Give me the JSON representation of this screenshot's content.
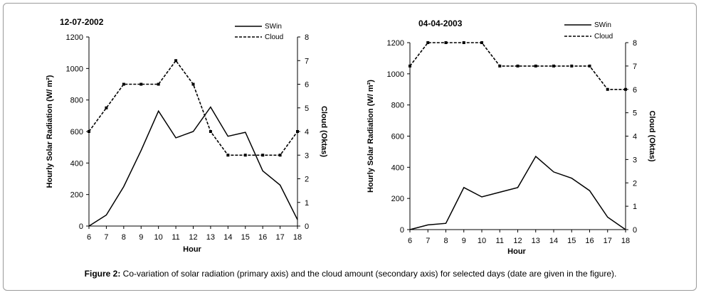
{
  "caption": {
    "label": "Figure 2:",
    "text": " Co-variation of solar radiation (primary axis) and the cloud amount (secondary axis) for selected days (date are given in the figure)."
  },
  "colors": {
    "swin": "#000000",
    "cloud": "#000000",
    "axis": "#000000"
  },
  "chart_data": [
    {
      "type": "line",
      "title": "12-07-2002",
      "xlabel": "Hour",
      "ylabel": "Hourly Solar Radiation (W/ m²)",
      "y2label": "Cloud (Oktas)",
      "x": [
        6,
        7,
        8,
        9,
        10,
        11,
        12,
        13,
        14,
        15,
        16,
        17,
        18
      ],
      "xticks": [
        "6",
        "7",
        "8",
        "9",
        "10",
        "11",
        "12",
        "13",
        "14",
        "15",
        "16",
        "17",
        "18"
      ],
      "ylim": [
        0,
        1200
      ],
      "yticks": [
        "0",
        "200",
        "400",
        "600",
        "800",
        "1000",
        "1200"
      ],
      "y2lim": [
        0,
        8
      ],
      "y2ticks": [
        "0",
        "1",
        "2",
        "3",
        "4",
        "5",
        "6",
        "7",
        "8"
      ],
      "legend": [
        "SWin",
        "Cloud"
      ],
      "legend_position": "top-right",
      "grid": false,
      "series": [
        {
          "name": "SWin",
          "axis": "primary",
          "values": [
            0,
            70,
            250,
            480,
            730,
            560,
            600,
            755,
            570,
            595,
            350,
            260,
            40
          ]
        },
        {
          "name": "Cloud",
          "axis": "secondary",
          "values": [
            4,
            5,
            6,
            6,
            6,
            7,
            6,
            4,
            3,
            3,
            3,
            3,
            4
          ]
        }
      ]
    },
    {
      "type": "line",
      "title": "04-04-2003",
      "xlabel": "Hour",
      "ylabel": "Hourly Solar Radiation (W/ m²)",
      "y2label": "Cloud (Oktas)",
      "x": [
        6,
        7,
        8,
        9,
        10,
        11,
        12,
        13,
        14,
        15,
        16,
        17,
        18
      ],
      "xticks": [
        "6",
        "7",
        "8",
        "9",
        "10",
        "11",
        "12",
        "13",
        "14",
        "15",
        "16",
        "17",
        "18"
      ],
      "ylim": [
        0,
        1200
      ],
      "yticks": [
        "0",
        "200",
        "400",
        "600",
        "800",
        "1000",
        "1200"
      ],
      "y2lim": [
        0,
        8
      ],
      "y2ticks": [
        "0",
        "1",
        "2",
        "3",
        "4",
        "5",
        "6",
        "7",
        "8"
      ],
      "legend": [
        "SWin",
        "Cloud"
      ],
      "legend_position": "top-right",
      "grid": false,
      "series": [
        {
          "name": "SWin",
          "axis": "primary",
          "values": [
            0,
            30,
            40,
            270,
            210,
            240,
            270,
            470,
            370,
            330,
            250,
            80,
            0
          ]
        },
        {
          "name": "Cloud",
          "axis": "secondary",
          "values": [
            7,
            8,
            8,
            8,
            8,
            7,
            7,
            7,
            7,
            7,
            7,
            6,
            6
          ]
        }
      ]
    }
  ]
}
